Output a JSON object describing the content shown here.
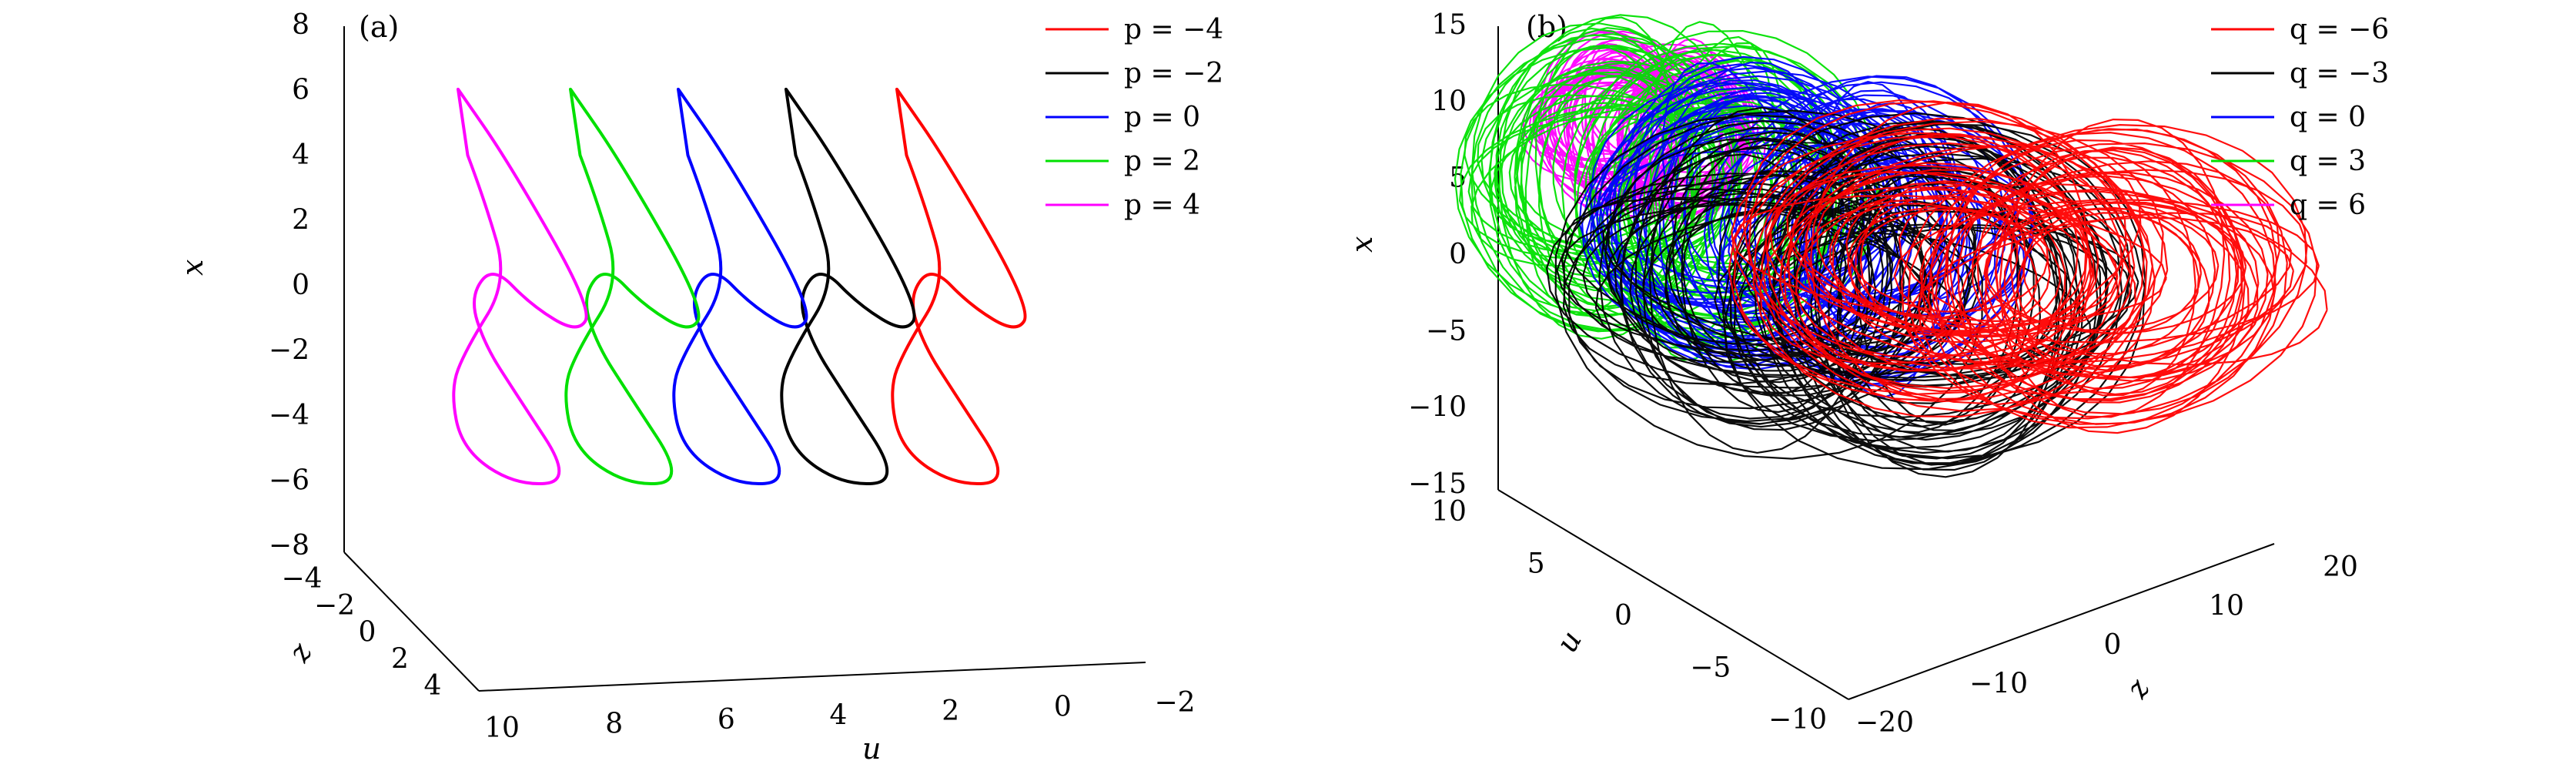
{
  "chart_data": [
    {
      "type": "line",
      "panel_label": "(a)",
      "xlabel": "u",
      "ylabel": "z",
      "zlabel": "x",
      "projection": "3d",
      "xlim": [
        -2,
        10
      ],
      "ylim": [
        -4,
        4
      ],
      "zlim": [
        -8,
        8
      ],
      "x_ticks": [
        "10",
        "8",
        "6",
        "4",
        "2",
        "0",
        "−2"
      ],
      "y_ticks": [
        "−4",
        "−2",
        "0",
        "2",
        "4"
      ],
      "z_ticks": [
        "8",
        "6",
        "4",
        "2",
        "0",
        "−2",
        "−4",
        "−6",
        "−8"
      ],
      "legend": {
        "position": "top-right"
      },
      "series": [
        {
          "name": "p = −4",
          "parameter": -4,
          "color": "#ff0000",
          "x_max": 6.3,
          "x_min": -6.0
        },
        {
          "name": "p = −2",
          "parameter": -2,
          "color": "#000000",
          "x_max": 6.3,
          "x_min": -6.0
        },
        {
          "name": "p = 0",
          "parameter": 0,
          "color": "#0000ff",
          "x_max": 6.3,
          "x_min": -6.0
        },
        {
          "name": "p = 2",
          "parameter": 2,
          "color": "#00e000",
          "x_max": 6.3,
          "x_min": -6.0
        },
        {
          "name": "p = 4",
          "parameter": 4,
          "color": "#ff00ff",
          "x_max": 6.3,
          "x_min": -6.0
        }
      ]
    },
    {
      "type": "line",
      "panel_label": "(b)",
      "xlabel": "z",
      "ylabel": "u",
      "zlabel": "x",
      "projection": "3d",
      "xlim": [
        -20,
        20
      ],
      "ylim": [
        -10,
        10
      ],
      "zlim": [
        -15,
        15
      ],
      "x_ticks": [
        "−20",
        "−10",
        "0",
        "10",
        "20"
      ],
      "y_ticks": [
        "10",
        "5",
        "0",
        "−5",
        "−10"
      ],
      "z_ticks": [
        "15",
        "10",
        "5",
        "0",
        "−5",
        "−10",
        "−15"
      ],
      "legend": {
        "position": "top-right"
      },
      "series": [
        {
          "name": "q = −6",
          "parameter": -6,
          "color": "#ff0000"
        },
        {
          "name": "q = −3",
          "parameter": -3,
          "color": "#000000"
        },
        {
          "name": "q = 0",
          "parameter": 0,
          "color": "#0000ff"
        },
        {
          "name": "q = 3",
          "parameter": 3,
          "color": "#00e000"
        },
        {
          "name": "q = 6",
          "parameter": 6,
          "color": "#ff00ff"
        }
      ]
    }
  ]
}
